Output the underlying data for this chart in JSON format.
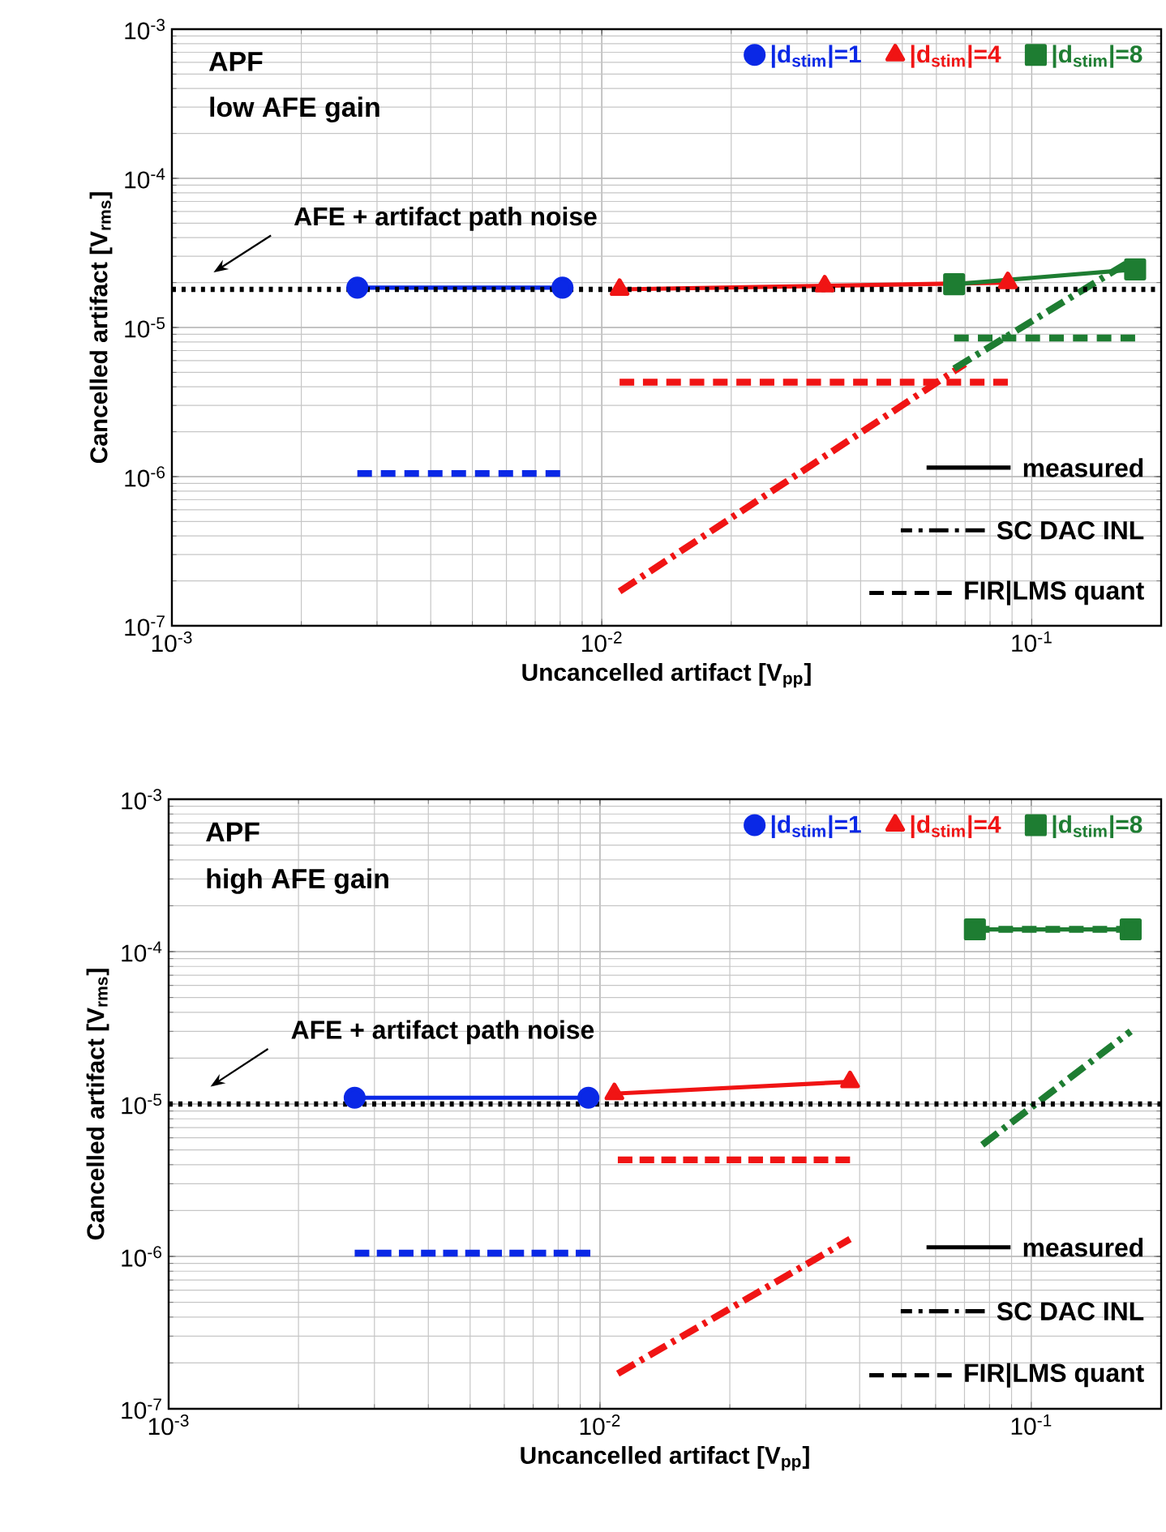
{
  "chart_data": [
    {
      "type": "line",
      "xlabel": "Uncancelled artifact [V$_{pp}$]",
      "ylabel": "Cancelled artifact [V$_{rms}$]",
      "log": "xy",
      "grid": true,
      "legend": "top right",
      "xlim": [
        0.001,
        0.2
      ],
      "ylim": [
        1e-07,
        0.001
      ],
      "xticks": [
        {
          "value": 0.001,
          "label": "10$^{-3}$"
        },
        {
          "value": 0.01,
          "label": "10$^{-2}$"
        },
        {
          "value": 0.1,
          "label": "10$^{-1}$"
        }
      ],
      "yticks": [
        {
          "value": 1e-07,
          "label": "10$^{-7}$"
        },
        {
          "value": 1e-06,
          "label": "10$^{-6}$"
        },
        {
          "value": 1e-05,
          "label": "10$^{-5}$"
        },
        {
          "value": 0.0001,
          "label": "10$^{-4}$"
        },
        {
          "value": 0.001,
          "label": "10$^{-3}$"
        }
      ],
      "annotations": [
        "APF",
        "low AFE gain",
        "measured",
        "SC DAC INL",
        "FIR|LMS quant"
      ],
      "ref_lines": [
        {
          "axis": "y",
          "value": 1.8e-05,
          "label": "AFE + artifact path noise",
          "color": "#000000",
          "line_style": "dotted"
        }
      ],
      "series": [
        {
          "name": "|d$_{stim}$|=1",
          "color": "#0a28e6",
          "marker": "circle",
          "line_style": "solid",
          "x": [
            0.0027,
            0.0081
          ],
          "values": [
            1.85e-05,
            1.85e-05
          ]
        },
        {
          "name": "|d$_{stim}$|=4",
          "color": "#f01414",
          "marker": "triangle",
          "line_style": "solid",
          "x": [
            0.011,
            0.033,
            0.088
          ],
          "values": [
            1.8e-05,
            1.9e-05,
            2e-05
          ]
        },
        {
          "name": "|d$_{stim}$|=8",
          "color": "#1e7d32",
          "marker": "square",
          "line_style": "solid",
          "x": [
            0.066,
            0.174
          ],
          "values": [
            1.95e-05,
            2.45e-05
          ]
        },
        {
          "color": "#f01414",
          "line_style": "dashdot",
          "x": [
            0.011,
            0.07
          ],
          "values": [
            1.7e-07,
            5.7e-06
          ]
        },
        {
          "color": "#1e7d32",
          "line_style": "dashdot",
          "x": [
            0.066,
            0.17
          ],
          "values": [
            5.3e-06,
            2.8e-05
          ]
        },
        {
          "color": "#0a28e6",
          "line_style": "dashed",
          "x": [
            0.0027,
            0.008
          ],
          "values": [
            1.05e-06,
            1.05e-06
          ]
        },
        {
          "color": "#f01414",
          "line_style": "dashed",
          "x": [
            0.011,
            0.088
          ],
          "values": [
            4.3e-06,
            4.3e-06
          ]
        },
        {
          "color": "#1e7d32",
          "line_style": "dashed",
          "x": [
            0.066,
            0.174
          ],
          "values": [
            8.5e-06,
            8.5e-06
          ]
        }
      ]
    },
    {
      "type": "line",
      "xlabel": "Uncancelled artifact [V$_{pp}$]",
      "ylabel": "Cancelled artifact [V$_{rms}$]",
      "log": "xy",
      "grid": true,
      "legend": "top right",
      "xlim": [
        0.001,
        0.2
      ],
      "ylim": [
        1e-07,
        0.001
      ],
      "xticks": [
        {
          "value": 0.001,
          "label": "10$^{-3}$"
        },
        {
          "value": 0.01,
          "label": "10$^{-2}$"
        },
        {
          "value": 0.1,
          "label": "10$^{-1}$"
        }
      ],
      "yticks": [
        {
          "value": 1e-07,
          "label": "10$^{-7}$"
        },
        {
          "value": 1e-06,
          "label": "10$^{-6}$"
        },
        {
          "value": 1e-05,
          "label": "10$^{-5}$"
        },
        {
          "value": 0.0001,
          "label": "10$^{-4}$"
        },
        {
          "value": 0.001,
          "label": "10$^{-3}$"
        }
      ],
      "annotations": [
        "APF",
        "high AFE gain",
        "measured",
        "SC DAC INL",
        "FIR|LMS quant"
      ],
      "ref_lines": [
        {
          "axis": "y",
          "value": 1e-05,
          "label": "AFE + artifact path noise",
          "color": "#000000",
          "line_style": "dotted"
        }
      ],
      "series": [
        {
          "name": "|d$_{stim}$|=1",
          "color": "#0a28e6",
          "marker": "circle",
          "line_style": "solid",
          "x": [
            0.0027,
            0.0094
          ],
          "values": [
            1.1e-05,
            1.1e-05
          ]
        },
        {
          "name": "|d$_{stim}$|=4",
          "color": "#f01414",
          "marker": "triangle",
          "line_style": "solid",
          "x": [
            0.0108,
            0.038
          ],
          "values": [
            1.17e-05,
            1.4e-05
          ]
        },
        {
          "name": "|d$_{stim}$|=8",
          "color": "#1e7d32",
          "marker": "square",
          "line_style": "solid",
          "x": [
            0.074,
            0.17
          ],
          "values": [
            0.00014,
            0.00014
          ]
        },
        {
          "color": "#f01414",
          "line_style": "dashdot",
          "x": [
            0.011,
            0.038
          ],
          "values": [
            1.7e-07,
            1.3e-06
          ]
        },
        {
          "color": "#1e7d32",
          "line_style": "dashdot",
          "x": [
            0.077,
            0.17
          ],
          "values": [
            5.4e-06,
            3e-05
          ]
        },
        {
          "color": "#0a28e6",
          "line_style": "dashed",
          "x": [
            0.0027,
            0.0095
          ],
          "values": [
            1.05e-06,
            1.05e-06
          ]
        },
        {
          "color": "#f01414",
          "line_style": "dashed",
          "x": [
            0.011,
            0.038
          ],
          "values": [
            4.3e-06,
            4.3e-06
          ]
        },
        {
          "color": "#1e7d32",
          "line_style": "dashed",
          "x": [
            0.074,
            0.17
          ],
          "values": [
            0.00014,
            0.00014
          ]
        }
      ]
    }
  ]
}
